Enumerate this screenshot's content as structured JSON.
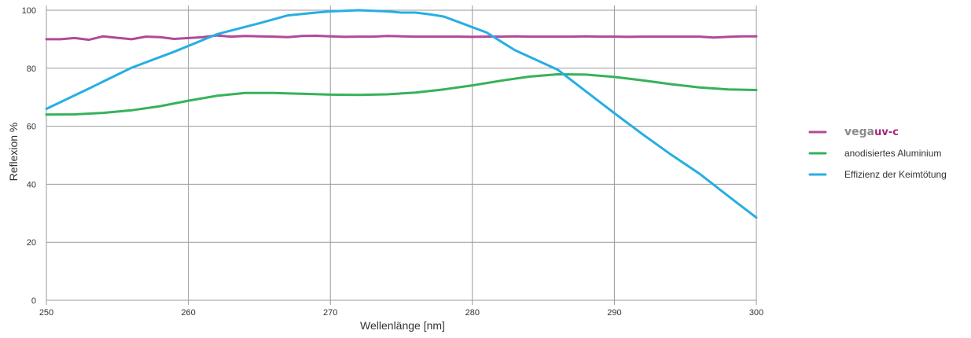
{
  "chart_data": {
    "type": "line",
    "title": "",
    "xlabel": "Wellenlänge [nm]",
    "ylabel": "Reflexion %",
    "xlim": [
      250,
      300
    ],
    "ylim": [
      0,
      100
    ],
    "x_ticks": [
      250,
      260,
      270,
      280,
      290,
      300
    ],
    "y_ticks": [
      0,
      20,
      40,
      60,
      80,
      100
    ],
    "grid": true,
    "legend_position": "right",
    "legend": {
      "brand_part1": "vega",
      "brand_part2": "uv-c"
    },
    "series": [
      {
        "id": "vegauvc",
        "name": "vegauv-c",
        "color": "#b04a9b",
        "x": [
          250,
          251,
          252,
          253,
          254,
          255,
          256,
          257,
          258,
          259,
          260,
          261,
          262,
          263,
          264,
          265,
          266,
          267,
          268,
          269,
          270,
          271,
          272,
          273,
          274,
          275,
          276,
          277,
          278,
          279,
          280,
          281,
          282,
          283,
          284,
          285,
          286,
          287,
          288,
          289,
          290,
          291,
          292,
          293,
          294,
          295,
          296,
          297,
          298,
          299,
          300
        ],
        "y": [
          90,
          90,
          90.4,
          89.8,
          91,
          90.5,
          90,
          90.9,
          90.7,
          90.1,
          90.4,
          90.7,
          91.3,
          90.9,
          91.1,
          91,
          90.9,
          90.7,
          91.1,
          91.2,
          91,
          90.8,
          90.9,
          90.9,
          91.1,
          91,
          90.9,
          90.9,
          90.9,
          90.9,
          90.8,
          90.9,
          90.9,
          91,
          90.9,
          90.9,
          90.9,
          90.9,
          91,
          90.9,
          90.9,
          90.8,
          90.9,
          90.9,
          90.9,
          90.9,
          90.9,
          90.6,
          90.8,
          91,
          91
        ]
      },
      {
        "id": "aluminium",
        "name": "anodisiertes Aluminium",
        "color": "#36b25a",
        "x": [
          250,
          252,
          254,
          256,
          258,
          260,
          262,
          264,
          266,
          268,
          270,
          272,
          274,
          276,
          278,
          280,
          282,
          284,
          286,
          288,
          290,
          292,
          294,
          296,
          298,
          300
        ],
        "y": [
          64,
          64.1,
          64.6,
          65.5,
          66.9,
          68.8,
          70.5,
          71.5,
          71.5,
          71.2,
          70.9,
          70.8,
          71,
          71.6,
          72.7,
          74.1,
          75.7,
          77.1,
          77.9,
          77.8,
          77,
          75.8,
          74.5,
          73.4,
          72.7,
          72.5
        ]
      },
      {
        "id": "keimtoetung",
        "name": "Effizienz der Keimtötung",
        "color": "#27aee3",
        "x": [
          250,
          253,
          256,
          259,
          262,
          265,
          267,
          269,
          270,
          272,
          274,
          275,
          276,
          277,
          278,
          279,
          281,
          283,
          286,
          288,
          290,
          292,
          294,
          296,
          298,
          300
        ],
        "y": [
          66,
          73,
          80.2,
          85.7,
          91.7,
          95.5,
          98.2,
          99.2,
          99.6,
          100,
          99.6,
          99.2,
          99.2,
          98.6,
          97.8,
          96,
          92.3,
          86.2,
          79.5,
          72,
          64.5,
          57.2,
          50.2,
          43.6,
          36,
          28.5
        ]
      }
    ]
  }
}
